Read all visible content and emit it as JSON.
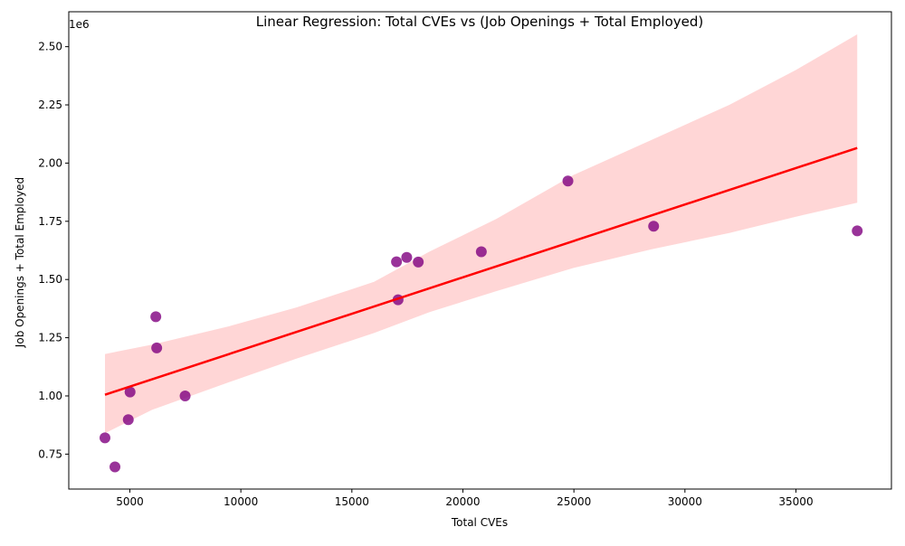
{
  "chart_data": {
    "type": "scatter",
    "title": "Linear Regression: Total CVEs vs (Job Openings + Total Employed)",
    "xlabel": "Total CVEs",
    "ylabel": "Job Openings + Total Employed",
    "y_offset_label": "1e6",
    "xlim": [
      2250,
      39300
    ],
    "ylim": [
      600000,
      2650000
    ],
    "x_ticks": [
      5000,
      10000,
      15000,
      20000,
      25000,
      30000,
      35000
    ],
    "x_tick_labels": [
      "5000",
      "10000",
      "15000",
      "20000",
      "25000",
      "30000",
      "35000"
    ],
    "y_ticks": [
      750000,
      1000000,
      1250000,
      1500000,
      1750000,
      2000000,
      2250000,
      2500000
    ],
    "y_tick_labels": [
      "0.75",
      "1.00",
      "1.25",
      "1.50",
      "1.75",
      "2.00",
      "2.25",
      "2.50"
    ],
    "grid": false,
    "points": [
      {
        "x": 3880,
        "y": 820000
      },
      {
        "x": 4330,
        "y": 695000
      },
      {
        "x": 4930,
        "y": 898000
      },
      {
        "x": 5010,
        "y": 1017000
      },
      {
        "x": 6170,
        "y": 1340000
      },
      {
        "x": 6210,
        "y": 1206000
      },
      {
        "x": 7490,
        "y": 1000000
      },
      {
        "x": 17010,
        "y": 1576000
      },
      {
        "x": 17080,
        "y": 1413000
      },
      {
        "x": 17470,
        "y": 1595000
      },
      {
        "x": 17990,
        "y": 1575000
      },
      {
        "x": 20830,
        "y": 1619000
      },
      {
        "x": 24730,
        "y": 1923000
      },
      {
        "x": 28590,
        "y": 1729000
      },
      {
        "x": 37760,
        "y": 1709000
      }
    ],
    "point_color": "#800080",
    "regression_line": {
      "x": [
        3880,
        37760
      ],
      "y": [
        1005000,
        2065000
      ],
      "color": "#ff0000"
    },
    "confidence_band": {
      "color": "#ff9999",
      "upper": [
        {
          "x": 3880,
          "y": 1180000
        },
        {
          "x": 6000,
          "y": 1220000
        },
        {
          "x": 9500,
          "y": 1300000
        },
        {
          "x": 12500,
          "y": 1380000
        },
        {
          "x": 16000,
          "y": 1490000
        },
        {
          "x": 18500,
          "y": 1620000
        },
        {
          "x": 21500,
          "y": 1760000
        },
        {
          "x": 25000,
          "y": 1950000
        },
        {
          "x": 28500,
          "y": 2100000
        },
        {
          "x": 32000,
          "y": 2250000
        },
        {
          "x": 35000,
          "y": 2400000
        },
        {
          "x": 37760,
          "y": 2553000
        }
      ],
      "lower": [
        {
          "x": 37760,
          "y": 1830000
        },
        {
          "x": 35000,
          "y": 1770000
        },
        {
          "x": 32000,
          "y": 1700000
        },
        {
          "x": 28500,
          "y": 1630000
        },
        {
          "x": 25000,
          "y": 1550000
        },
        {
          "x": 21500,
          "y": 1450000
        },
        {
          "x": 18500,
          "y": 1360000
        },
        {
          "x": 16000,
          "y": 1270000
        },
        {
          "x": 12500,
          "y": 1160000
        },
        {
          "x": 9500,
          "y": 1060000
        },
        {
          "x": 6000,
          "y": 940000
        },
        {
          "x": 3880,
          "y": 840000
        }
      ]
    }
  }
}
